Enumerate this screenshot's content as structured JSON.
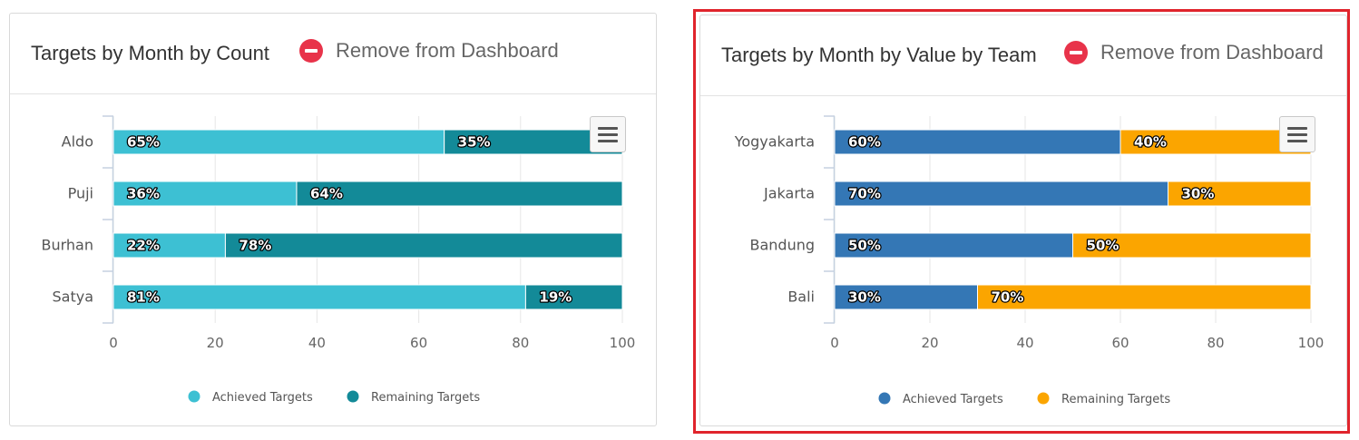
{
  "cards": [
    {
      "title": "Targets by Month by Count",
      "remove_label": "Remove from Dashboard",
      "chart_data": {
        "type": "bar",
        "orientation": "horizontal",
        "stacking": "percent",
        "categories": [
          "Aldo",
          "Puji",
          "Burhan",
          "Satya"
        ],
        "series": [
          {
            "name": "Achieved Targets",
            "color": "#3dc0d3",
            "values": [
              65,
              36,
              22,
              81
            ]
          },
          {
            "name": "Remaining Targets",
            "color": "#138a98",
            "values": [
              35,
              64,
              78,
              19
            ]
          }
        ],
        "data_labels": [
          [
            "65%",
            "36%",
            "22%",
            "81%"
          ],
          [
            "35%",
            "64%",
            "78%",
            "19%"
          ]
        ],
        "xlim": [
          0,
          100
        ],
        "xticks": [
          "0",
          "20",
          "40",
          "60",
          "80",
          "100"
        ],
        "grid": true,
        "legend": "bottom-center"
      }
    },
    {
      "title": "Targets by Month by Value by Team",
      "remove_label": "Remove from Dashboard",
      "chart_data": {
        "type": "bar",
        "orientation": "horizontal",
        "stacking": "percent",
        "categories": [
          "Yogyakarta",
          "Jakarta",
          "Bandung",
          "Bali"
        ],
        "series": [
          {
            "name": "Achieved Targets",
            "color": "#3477b5",
            "values": [
              60,
              70,
              50,
              30
            ]
          },
          {
            "name": "Remaining Targets",
            "color": "#fba500",
            "values": [
              40,
              30,
              50,
              70
            ]
          }
        ],
        "data_labels": [
          [
            "60%",
            "70%",
            "50%",
            "30%"
          ],
          [
            "40%",
            "30%",
            "50%",
            "70%"
          ]
        ],
        "xlim": [
          0,
          100
        ],
        "xticks": [
          "0",
          "20",
          "40",
          "60",
          "80",
          "100"
        ],
        "grid": true,
        "legend": "bottom-center"
      }
    }
  ],
  "colors": {
    "remove_icon": "#e8334a",
    "highlight_frame": "#e0242c",
    "axis_line": "#c5d1e0",
    "grid_line": "#e6e6e6"
  },
  "icons": {
    "remove": "minus-circle-icon",
    "menu": "hamburger-menu-icon"
  }
}
